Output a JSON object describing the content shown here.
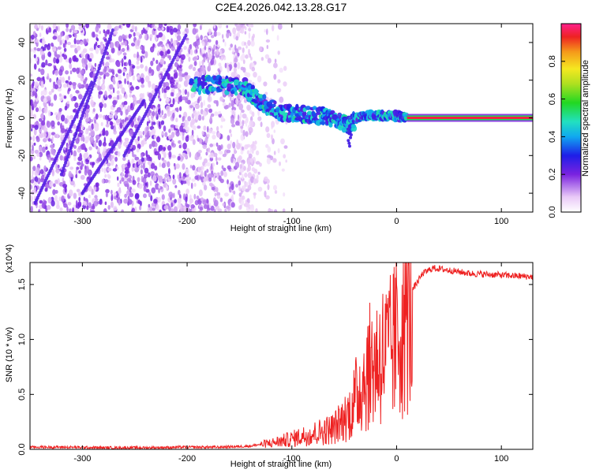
{
  "figure": {
    "title": "C2E4.2026.042.13.28.G17"
  },
  "chart_data": [
    {
      "type": "heatmap",
      "xlabel": "Height of straight line (km)",
      "ylabel": "Frequency (Hz)",
      "xlim": [
        -350,
        130
      ],
      "ylim": [
        -50,
        50
      ],
      "xticks": [
        -300,
        -200,
        -100,
        0,
        100
      ],
      "yticks": [
        -40,
        -20,
        0,
        20,
        40
      ],
      "colorbar": {
        "label": "Normalized spectral amplitude",
        "range": [
          0,
          1
        ],
        "ticks": [
          0.0,
          0.2,
          0.4,
          0.6,
          0.8
        ]
      },
      "features": [
        {
          "name": "noise region",
          "x_range": [
            -350,
            -135
          ],
          "y_range": [
            -50,
            50
          ]
        },
        {
          "name": "scattered low-level region",
          "x_range": [
            -200,
            -130
          ],
          "y_range": [
            -50,
            50
          ]
        },
        {
          "name": "signal track",
          "points": [
            [
              -195,
              17
            ],
            [
              -170,
              18
            ],
            [
              -145,
              16
            ],
            [
              -130,
              8
            ],
            [
              -110,
              3
            ],
            [
              -90,
              2
            ],
            [
              -70,
              1
            ],
            [
              -55,
              -2
            ],
            [
              -45,
              -4
            ],
            [
              -38,
              0
            ],
            [
              -25,
              1
            ],
            [
              -10,
              1
            ],
            [
              0,
              1
            ],
            [
              10,
              0
            ]
          ]
        },
        {
          "name": "carrier line",
          "x_range": [
            10,
            130
          ],
          "y": 0,
          "amplitude": 0.95
        }
      ]
    },
    {
      "type": "line",
      "xlabel": "Height of straight line (km)",
      "ylabel": "SNR (10 * v/v)",
      "y_multiplier": "(x10^4)",
      "xlim": [
        -350,
        130
      ],
      "ylim": [
        0,
        1.7
      ],
      "xticks": [
        -300,
        -200,
        -100,
        0,
        100
      ],
      "yticks": [
        0.0,
        0.5,
        1.0,
        1.5
      ],
      "color": "#ee2222",
      "x": [
        -350,
        -320,
        -280,
        -240,
        -200,
        -170,
        -140,
        -120,
        -100,
        -80,
        -60,
        -45,
        -35,
        -25,
        -15,
        -5,
        5,
        15,
        25,
        35,
        50,
        70,
        90,
        110,
        130
      ],
      "values": [
        0.02,
        0.02,
        0.015,
        0.015,
        0.02,
        0.02,
        0.03,
        0.06,
        0.1,
        0.15,
        0.2,
        0.35,
        0.6,
        0.8,
        0.9,
        0.95,
        1.2,
        1.45,
        1.6,
        1.65,
        1.63,
        1.6,
        1.59,
        1.58,
        1.57
      ]
    }
  ]
}
